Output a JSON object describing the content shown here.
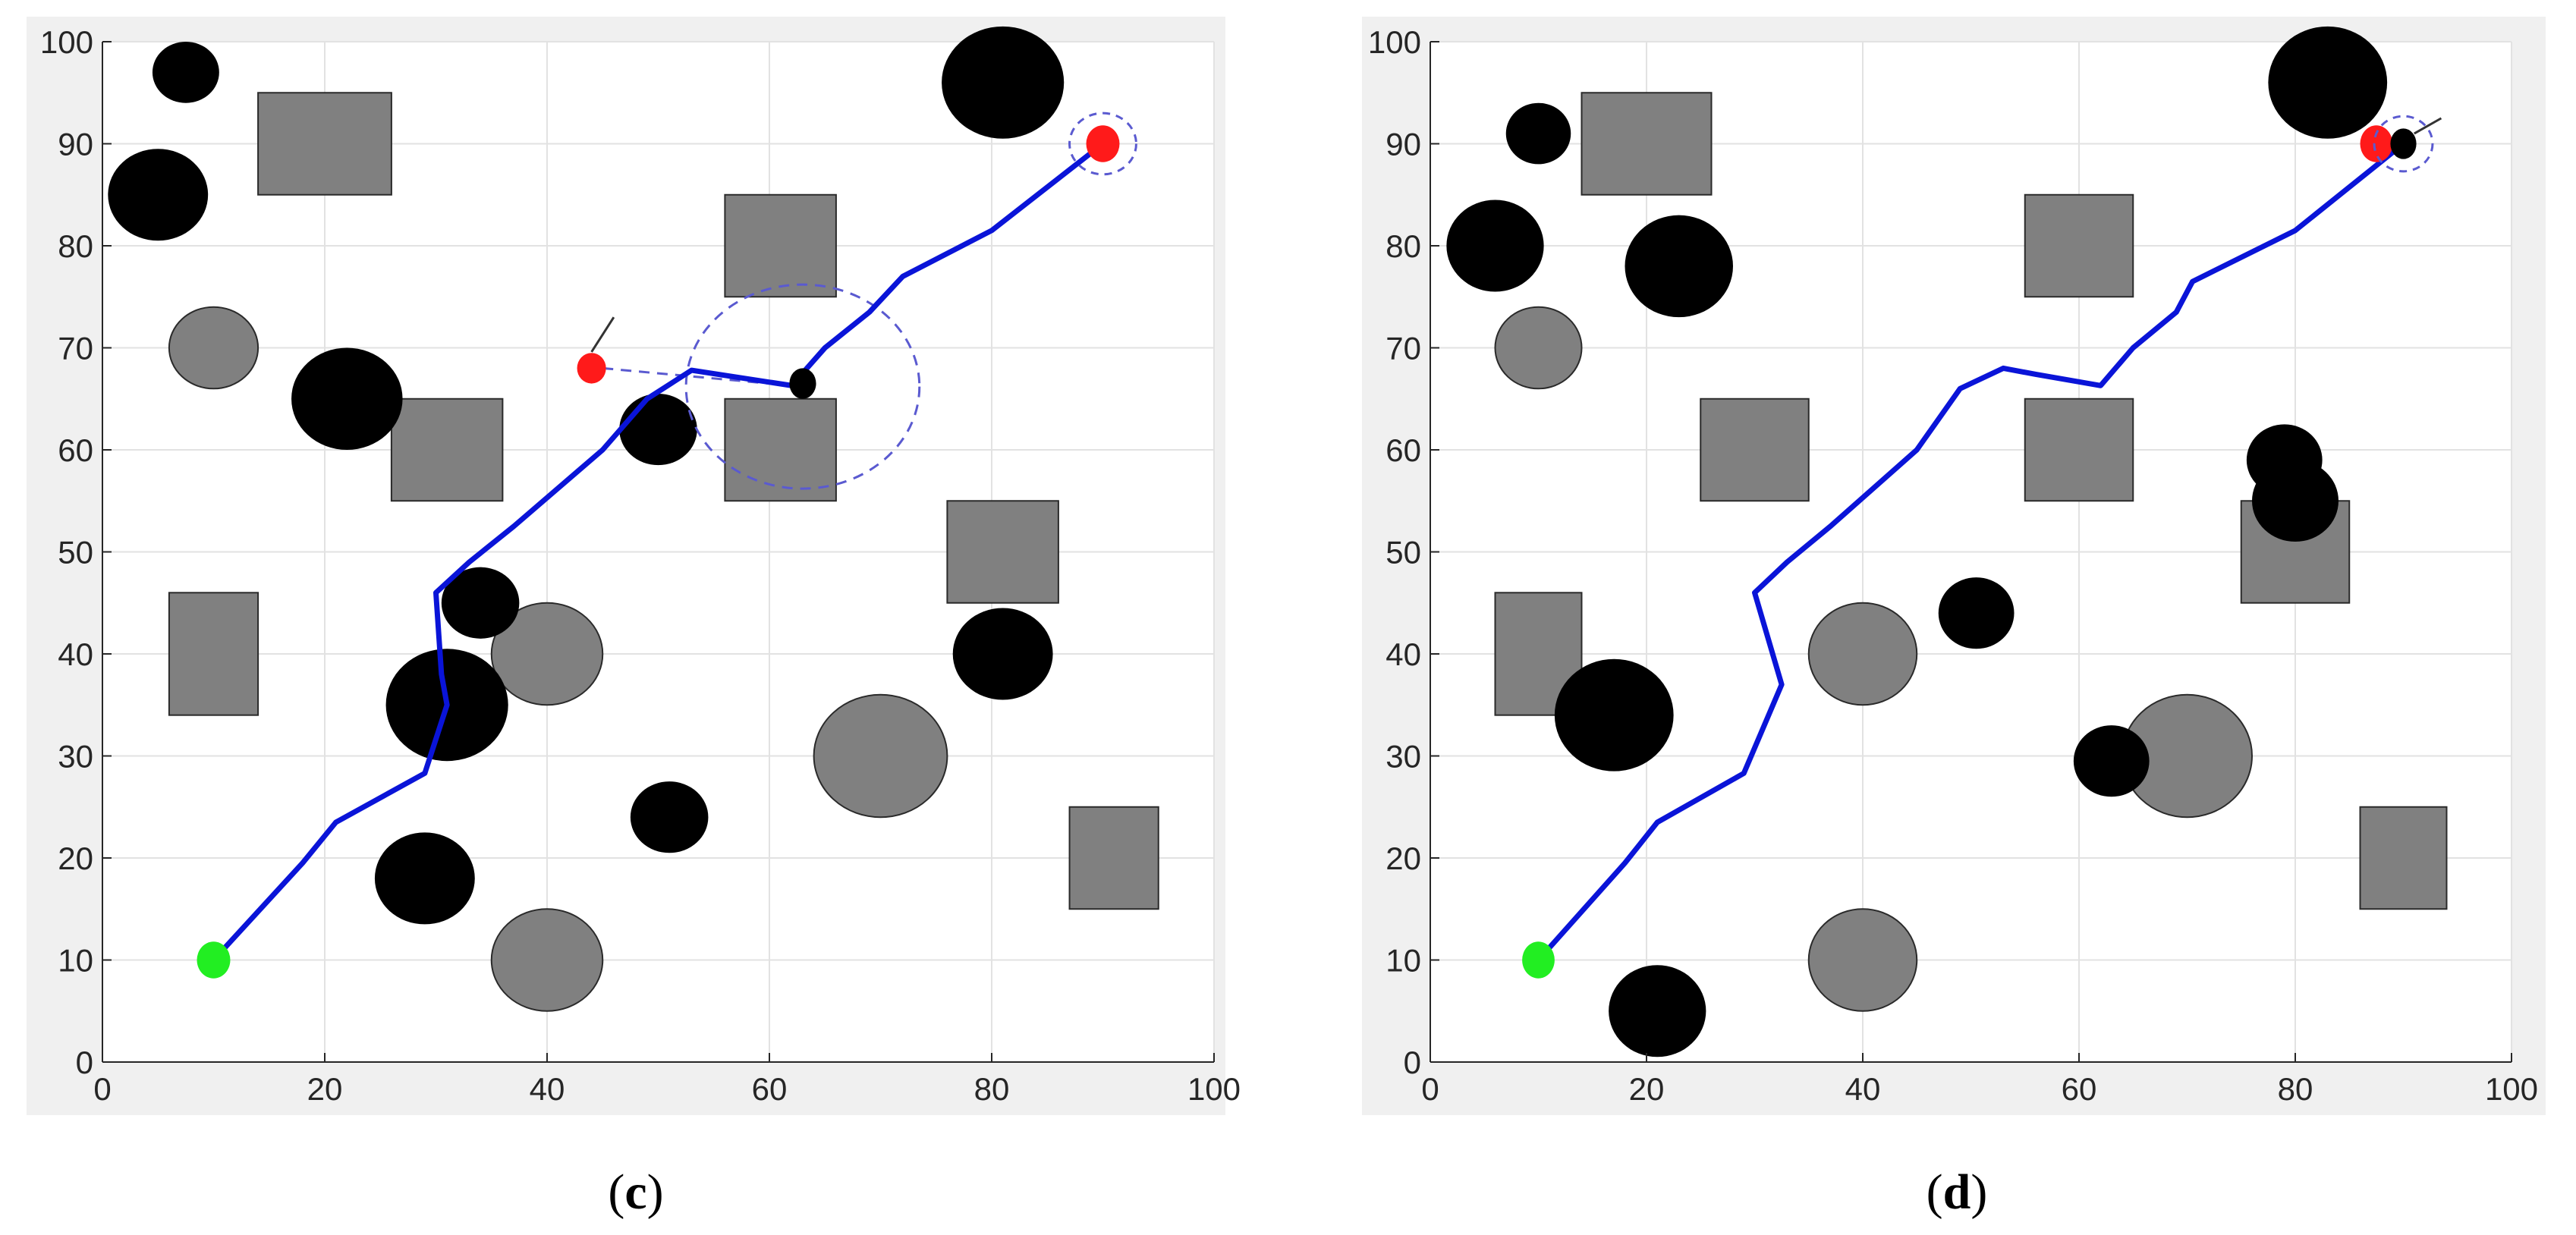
{
  "figure": {
    "panels": [
      "c",
      "d"
    ]
  },
  "chart_data": [
    {
      "panel": "c",
      "caption": {
        "open": "(",
        "label": "c",
        "close": ")"
      },
      "type": "scatter",
      "xlim": [
        0,
        100
      ],
      "ylim": [
        0,
        100
      ],
      "xticks": [
        0,
        20,
        40,
        60,
        80,
        100
      ],
      "yticks": [
        0,
        10,
        20,
        30,
        40,
        50,
        60,
        70,
        80,
        90,
        100
      ],
      "grid": true,
      "colors": {
        "path": "#0a14d8",
        "start": "#22ee22",
        "goal": "#ff1a1a",
        "static_obstacle": "#808080",
        "dynamic_obstacle": "#000000",
        "sensing": "#5a5ad0"
      },
      "path": [
        [
          10,
          10
        ],
        [
          18,
          19.5
        ],
        [
          21,
          23.5
        ],
        [
          29,
          28.3
        ],
        [
          31,
          35
        ],
        [
          30.5,
          38
        ],
        [
          30,
          46
        ],
        [
          33,
          49
        ],
        [
          37,
          52.5
        ],
        [
          45,
          60
        ],
        [
          49,
          65
        ],
        [
          53,
          67.8
        ],
        [
          56,
          67.3
        ],
        [
          62,
          66.3
        ],
        [
          65,
          70
        ],
        [
          69,
          73.5
        ],
        [
          72,
          77
        ],
        [
          80,
          81.5
        ],
        [
          90,
          90
        ]
      ],
      "start": [
        10,
        10
      ],
      "goal": [
        90,
        90
      ],
      "rectangles": [
        {
          "x": [
            14,
            26
          ],
          "y": [
            85,
            95
          ]
        },
        {
          "x": [
            26,
            36
          ],
          "y": [
            55,
            65
          ]
        },
        {
          "x": [
            56,
            66
          ],
          "y": [
            75,
            85
          ]
        },
        {
          "x": [
            56,
            66
          ],
          "y": [
            55,
            65
          ]
        },
        {
          "x": [
            76,
            86
          ],
          "y": [
            45,
            55
          ]
        },
        {
          "x": [
            6,
            14
          ],
          "y": [
            34,
            46
          ]
        },
        {
          "x": [
            87,
            95
          ],
          "y": [
            15,
            25
          ]
        }
      ],
      "gray_circles": [
        {
          "cx": 10,
          "cy": 70,
          "rx": 4,
          "ry": 4
        },
        {
          "cx": 40,
          "cy": 40,
          "rx": 5,
          "ry": 5
        },
        {
          "cx": 70,
          "cy": 30,
          "rx": 6,
          "ry": 6
        },
        {
          "cx": 40,
          "cy": 10,
          "rx": 5,
          "ry": 5
        }
      ],
      "black_circles": [
        {
          "cx": 7.5,
          "cy": 97,
          "rx": 3,
          "ry": 3
        },
        {
          "cx": 5,
          "cy": 85,
          "rx": 4.5,
          "ry": 4.5
        },
        {
          "cx": 22,
          "cy": 65,
          "rx": 5,
          "ry": 5
        },
        {
          "cx": 81,
          "cy": 96,
          "rx": 5.5,
          "ry": 5.5
        },
        {
          "cx": 50,
          "cy": 62,
          "rx": 3.5,
          "ry": 3.5
        },
        {
          "cx": 34,
          "cy": 45,
          "rx": 3.5,
          "ry": 3.5
        },
        {
          "cx": 31,
          "cy": 35,
          "rx": 5.5,
          "ry": 5.5
        },
        {
          "cx": 81,
          "cy": 40,
          "rx": 4.5,
          "ry": 4.5
        },
        {
          "cx": 51,
          "cy": 24,
          "rx": 3.5,
          "ry": 3.5
        },
        {
          "cx": 29,
          "cy": 18,
          "rx": 4.5,
          "ry": 4.5
        }
      ],
      "robot": {
        "cx": 63,
        "cy": 66.5,
        "rx": 1.2,
        "ry": 1.5
      },
      "sensing_circle": {
        "cx": 63,
        "cy": 66.2,
        "rx": 10.5,
        "ry": 10
      },
      "goal_ring": {
        "cx": 90,
        "cy": 90,
        "rx": 3,
        "ry": 3
      },
      "moving_target": {
        "cx": 44,
        "cy": 68,
        "rx": 1.3,
        "ry": 1.5
      },
      "target_heading": [
        [
          44,
          69.6
        ],
        [
          46,
          73
        ]
      ],
      "target_link": [
        [
          45,
          68
        ],
        [
          62,
          66.3
        ]
      ]
    },
    {
      "panel": "d",
      "caption": {
        "open": "(",
        "label": "d",
        "close": ")"
      },
      "type": "scatter",
      "xlim": [
        0,
        100
      ],
      "ylim": [
        0,
        100
      ],
      "xticks": [
        0,
        20,
        40,
        60,
        80,
        100
      ],
      "yticks": [
        0,
        10,
        20,
        30,
        40,
        50,
        60,
        70,
        80,
        90,
        100
      ],
      "grid": true,
      "colors": {
        "path": "#0a14d8",
        "start": "#22ee22",
        "goal": "#ff1a1a",
        "static_obstacle": "#808080",
        "dynamic_obstacle": "#000000",
        "sensing": "#5a5ad0"
      },
      "path": [
        [
          10,
          10
        ],
        [
          18,
          19.5
        ],
        [
          21,
          23.5
        ],
        [
          29,
          28.3
        ],
        [
          32.5,
          37
        ],
        [
          30,
          46
        ],
        [
          33,
          49
        ],
        [
          37,
          52.5
        ],
        [
          45,
          60
        ],
        [
          49,
          66
        ],
        [
          53,
          68
        ],
        [
          56,
          67.4
        ],
        [
          62,
          66.3
        ],
        [
          65,
          70
        ],
        [
          69,
          73.5
        ],
        [
          70.5,
          76.5
        ],
        [
          80,
          81.5
        ],
        [
          90,
          90
        ]
      ],
      "start": [
        10,
        10
      ],
      "goal": [
        87.5,
        90
      ],
      "rectangles": [
        {
          "x": [
            14,
            26
          ],
          "y": [
            85,
            95
          ]
        },
        {
          "x": [
            25,
            35
          ],
          "y": [
            55,
            65
          ]
        },
        {
          "x": [
            55,
            65
          ],
          "y": [
            75,
            85
          ]
        },
        {
          "x": [
            55,
            65
          ],
          "y": [
            55,
            65
          ]
        },
        {
          "x": [
            75,
            85
          ],
          "y": [
            45,
            55
          ]
        },
        {
          "x": [
            6,
            14
          ],
          "y": [
            34,
            46
          ]
        },
        {
          "x": [
            86,
            94
          ],
          "y": [
            15,
            25
          ]
        }
      ],
      "gray_circles": [
        {
          "cx": 10,
          "cy": 70,
          "rx": 4,
          "ry": 4
        },
        {
          "cx": 40,
          "cy": 40,
          "rx": 5,
          "ry": 5
        },
        {
          "cx": 70,
          "cy": 30,
          "rx": 6,
          "ry": 6
        },
        {
          "cx": 40,
          "cy": 10,
          "rx": 5,
          "ry": 5
        }
      ],
      "black_circles": [
        {
          "cx": 10,
          "cy": 91,
          "rx": 3,
          "ry": 3
        },
        {
          "cx": 6,
          "cy": 80,
          "rx": 4.5,
          "ry": 4.5
        },
        {
          "cx": 23,
          "cy": 78,
          "rx": 5,
          "ry": 5
        },
        {
          "cx": 83,
          "cy": 96,
          "rx": 5.5,
          "ry": 5.5
        },
        {
          "cx": 79,
          "cy": 59,
          "rx": 3.5,
          "ry": 3.5
        },
        {
          "cx": 80,
          "cy": 55,
          "rx": 4,
          "ry": 4
        },
        {
          "cx": 50.5,
          "cy": 44,
          "rx": 3.5,
          "ry": 3.5
        },
        {
          "cx": 17,
          "cy": 34,
          "rx": 5.5,
          "ry": 5.5
        },
        {
          "cx": 63,
          "cy": 29.5,
          "rx": 3.5,
          "ry": 3.5
        },
        {
          "cx": 21,
          "cy": 5,
          "rx": 4.5,
          "ry": 4.5
        }
      ],
      "robot": {
        "cx": 90,
        "cy": 90,
        "rx": 1.2,
        "ry": 1.5
      },
      "sensing_circle": null,
      "goal_ring": {
        "cx": 90,
        "cy": 90,
        "rx": 2.7,
        "ry": 2.7
      },
      "moving_target": null,
      "target_heading": [
        [
          91,
          91
        ],
        [
          93.5,
          92.5
        ]
      ],
      "target_link": null
    }
  ]
}
